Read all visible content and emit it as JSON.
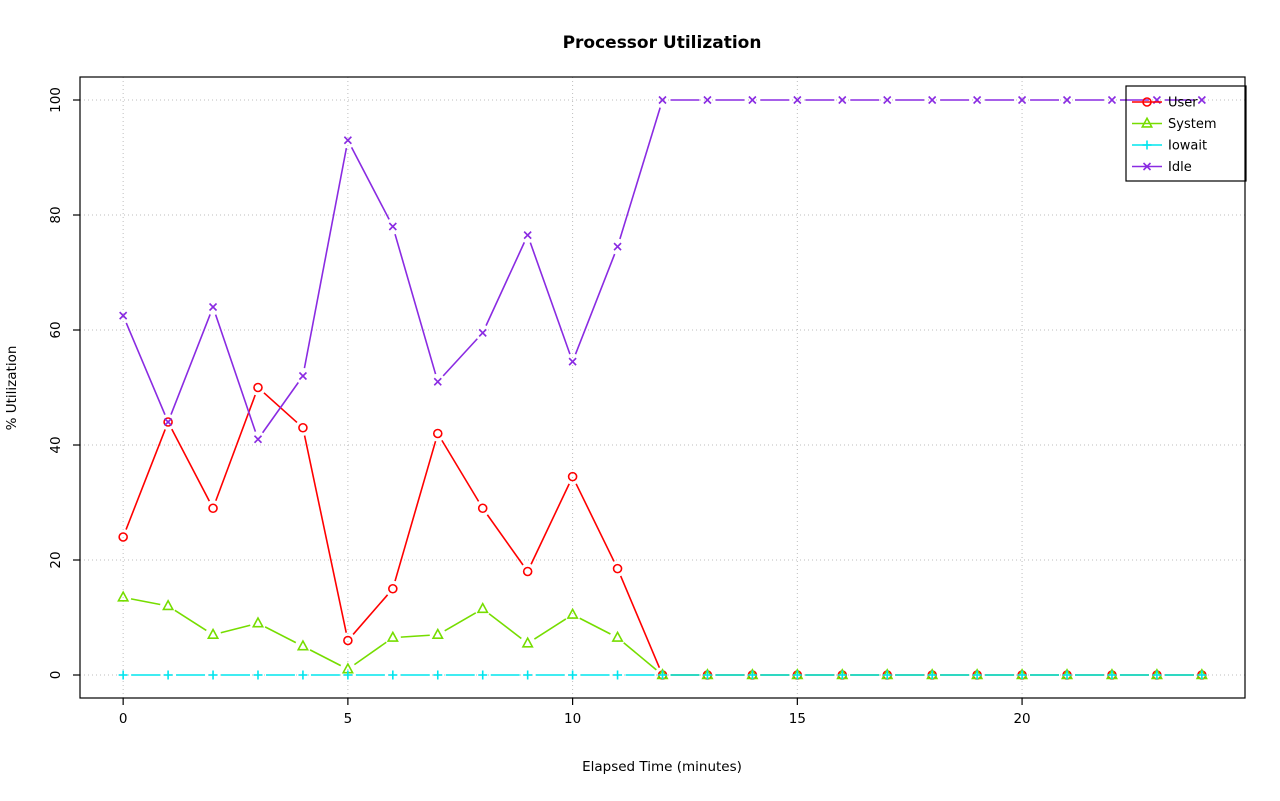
{
  "chart_data": {
    "type": "line",
    "title": "Processor Utilization",
    "xlabel": "Elapsed Time (minutes)",
    "ylabel": "% Utilization",
    "xlim": [
      0,
      24
    ],
    "ylim": [
      0,
      100
    ],
    "x_ticks": [
      0,
      5,
      10,
      15,
      20
    ],
    "y_ticks": [
      0,
      20,
      40,
      60,
      80,
      100
    ],
    "grid": true,
    "line_style": "points-and-segments",
    "x": [
      0,
      1,
      2,
      3,
      4,
      5,
      6,
      7,
      8,
      9,
      10,
      11,
      12,
      13,
      14,
      15,
      16,
      17,
      18,
      19,
      20,
      21,
      22,
      23,
      24
    ],
    "series": [
      {
        "name": "User",
        "color": "#FF0000",
        "marker": "circle",
        "values": [
          24,
          44,
          29,
          50,
          43,
          6,
          15,
          42,
          29,
          18,
          34.5,
          18.5,
          0,
          0,
          0,
          0,
          0,
          0,
          0,
          0,
          0,
          0,
          0,
          0,
          0
        ]
      },
      {
        "name": "System",
        "color": "#76DD00",
        "marker": "triangle",
        "values": [
          13.5,
          12,
          7,
          9,
          5,
          1,
          6.5,
          7,
          11.5,
          5.5,
          10.5,
          6.5,
          0,
          0,
          0,
          0,
          0,
          0,
          0,
          0,
          0,
          0,
          0,
          0,
          0
        ]
      },
      {
        "name": "Iowait",
        "color": "#00E5EE",
        "marker": "plus",
        "values": [
          0,
          0,
          0,
          0,
          0,
          0,
          0,
          0,
          0,
          0,
          0,
          0,
          0,
          0,
          0,
          0,
          0,
          0,
          0,
          0,
          0,
          0,
          0,
          0,
          0
        ]
      },
      {
        "name": "Idle",
        "color": "#8A2BE2",
        "marker": "x",
        "values": [
          62.5,
          44,
          64,
          41,
          52,
          93,
          78,
          51,
          59.5,
          76.5,
          54.5,
          74.5,
          100,
          100,
          100,
          100,
          100,
          100,
          100,
          100,
          100,
          100,
          100,
          100,
          100
        ]
      }
    ],
    "legend": {
      "position": "top-right",
      "entries": [
        "User",
        "System",
        "Iowait",
        "Idle"
      ]
    },
    "colors": {
      "grid": "#BEBEBE",
      "frame": "#000000",
      "background": "#FFFFFF"
    }
  }
}
